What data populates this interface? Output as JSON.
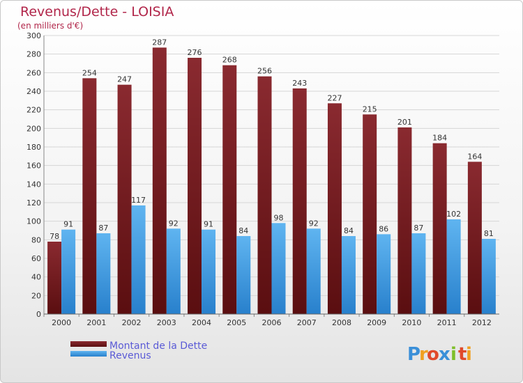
{
  "chart_data": {
    "type": "bar",
    "title": "Revenus/Dette - LOISIA",
    "subtitle": "(en milliers d'€)",
    "categories": [
      "2000",
      "2001",
      "2002",
      "2003",
      "2004",
      "2005",
      "2006",
      "2007",
      "2008",
      "2009",
      "2010",
      "2011",
      "2012"
    ],
    "series": [
      {
        "name": "Montant de la Dette",
        "color": "#7a1f26",
        "values": [
          78,
          254,
          247,
          287,
          276,
          268,
          256,
          243,
          227,
          215,
          201,
          184,
          164
        ]
      },
      {
        "name": "Revenus",
        "color": "#3d9be0",
        "values": [
          91,
          87,
          117,
          92,
          91,
          84,
          98,
          92,
          84,
          86,
          87,
          102,
          81
        ]
      }
    ],
    "ylim": [
      0,
      300
    ],
    "yticks": [
      0,
      20,
      40,
      60,
      80,
      100,
      120,
      140,
      160,
      180,
      200,
      220,
      240,
      260,
      280,
      300
    ],
    "grid": true,
    "legend_position": "bottom-left"
  },
  "logo": {
    "text": "Proxiti",
    "letters": [
      "P",
      "r",
      "o",
      "x",
      "i",
      "t",
      "i"
    ],
    "colors": [
      "#3a8fd8",
      "#f0a020",
      "#e04a2a",
      "#3a8fd8",
      "#7fbf2a",
      "#e04a2a",
      "#f0a020"
    ]
  }
}
